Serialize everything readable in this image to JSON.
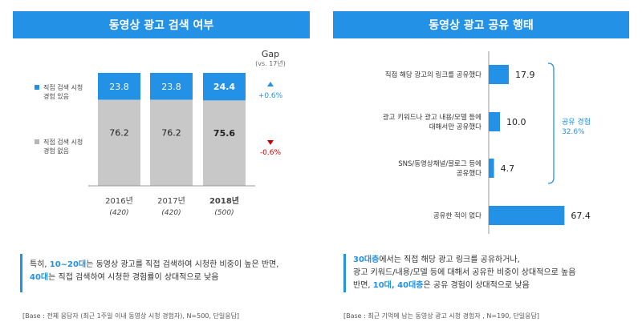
{
  "left_title": "동영상 광고 검색 여부",
  "right_title": "동영상 광고 공유 행태",
  "colors": {
    "accent": "#2391e6",
    "gray": "#c8c8c8",
    "up": "#2391e6",
    "down": "#cc0000"
  },
  "chart_data": [
    {
      "type": "bar",
      "stacked": true,
      "categories": [
        "2016년",
        "2017년",
        "2018년"
      ],
      "category_notes": [
        "(420)",
        "(420)",
        "(500)"
      ],
      "series": [
        {
          "name": "직접 검색 시청 경험 있음",
          "values": [
            23.8,
            23.8,
            24.4
          ],
          "color": "#2391e6"
        },
        {
          "name": "직접 검색 시청 경험 없음",
          "values": [
            76.2,
            76.2,
            75.6
          ],
          "color": "#c8c8c8"
        }
      ],
      "gap_title": "Gap",
      "gap_subtitle": "(vs. 17년)",
      "gaps": [
        {
          "icon": "triangle-up-icon",
          "value": "+0.6%",
          "color": "#2391e6"
        },
        {
          "icon": "triangle-down-icon",
          "value": "-0.6%",
          "color": "#cc0000"
        }
      ],
      "ylim": [
        0,
        100
      ]
    },
    {
      "type": "bar",
      "orientation": "horizontal",
      "categories": [
        "직접 해당 광고의 링크를 공유했다",
        "광고 키워드나 광고 내용/모델 등에 대해서만 공유했다",
        "SNS/동영상채널/블로그 등에 공유했다",
        "공유한 적이 없다"
      ],
      "values": [
        17.9,
        10.0,
        4.7,
        67.4
      ],
      "value_labels": [
        "17.9",
        "10.0",
        "4.7",
        "67.4"
      ],
      "bracket_label": "공유 경험",
      "bracket_value": "32.6%",
      "xlim": [
        0,
        100
      ]
    }
  ],
  "legend": {
    "item1_line1": "직접 검색 시청",
    "item1_line2": "경험 있음",
    "item2_line1": "직접 검색 시청",
    "item2_line2": "경험 없음"
  },
  "right_labels": [
    [
      "직접 해당 광고의 링크를 공유했다"
    ],
    [
      "광고 키워드나 광고 내용/모델 등에",
      "대해서만 공유했다"
    ],
    [
      "SNS/동영상채널/블로그 등에",
      "공유했다"
    ],
    [
      "공유한 적이 없다"
    ]
  ],
  "left_summary": {
    "p1": "특히, ",
    "h1": "10~20대",
    "p2": "는 동영상 광고를 직접 검색하여 시청한 비중이 높은 반면,",
    "h2": "40대",
    "p3": "는 직접 검색하여 시청한 경험률이 상대적으로 낮음"
  },
  "right_summary": {
    "h1": "30대층",
    "p1": "에서는 직접 해당 광고 링크를 공유하거나,",
    "p2": "광고 키워드/내용/모델 등에 대해서 공유한 비중이 상대적으로 높음",
    "p3": "반면, ",
    "h2": "10대, 40대층",
    "p4": "은 공유 경험이 상대적으로 낮음"
  },
  "left_note": "[Base : 전체 응답자 (최근 1주일 이내 동영상 시청 경험자), N=500, 단일응답]",
  "right_note": "[Base : 최근 기억에 남는 동영상 광고 시청 경험자 , N=190, 단일응답]"
}
